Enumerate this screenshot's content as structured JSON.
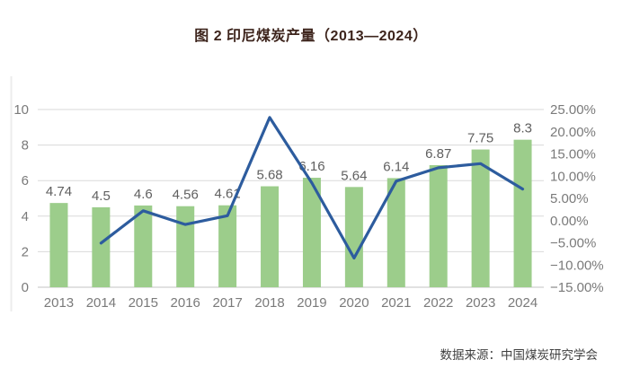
{
  "title": {
    "text": "图 2 印尼煤炭产量（2013—2024）",
    "color": "#3d241c"
  },
  "source": {
    "text": "数据来源：中国煤炭研究学会"
  },
  "chart_data": {
    "type": "bar",
    "combo": "bar+line",
    "title": "图 2 印尼煤炭产量（2013—2024）",
    "categories": [
      "2013",
      "2014",
      "2015",
      "2016",
      "2017",
      "2018",
      "2019",
      "2020",
      "2021",
      "2022",
      "2023",
      "2024"
    ],
    "series": [
      {
        "name": "production_bars",
        "type": "bar",
        "axis": "left",
        "values": [
          4.74,
          4.5,
          4.6,
          4.56,
          4.61,
          5.68,
          6.16,
          5.64,
          6.14,
          6.87,
          7.75,
          8.3
        ],
        "data_labels": [
          "4.74",
          "4.5",
          "4.6",
          "4.56",
          "4.61",
          "5.68",
          "6.16",
          "5.64",
          "6.14",
          "6.87",
          "7.75",
          "8.3"
        ],
        "color": "#9ccd8b"
      },
      {
        "name": "yoy_growth_line_pct",
        "type": "line",
        "axis": "right",
        "values": [
          null,
          -5.06,
          2.22,
          -0.87,
          1.1,
          23.21,
          8.45,
          -8.44,
          8.87,
          11.89,
          12.81,
          7.1
        ],
        "color": "#2d5c9e"
      }
    ],
    "left_axis": {
      "min": 0,
      "max": 10,
      "tick_labels": [
        "10",
        "8",
        "6",
        "4",
        "2",
        "0"
      ]
    },
    "right_axis": {
      "min": -15,
      "max": 25,
      "tick_labels": [
        "25.00%",
        "20.00%",
        "15.00%",
        "10.00%",
        "5.00%",
        "0.00%",
        "−5.00%",
        "−10.00%",
        "−15.00%"
      ]
    },
    "grid": true,
    "legend": "none",
    "colors": {
      "grid": "#d9d9d9",
      "baseline": "#c3c3c3",
      "axis_text": "#7a7a7a",
      "data_label_text": "#5f5f5f",
      "left_border": "#ececec"
    }
  }
}
